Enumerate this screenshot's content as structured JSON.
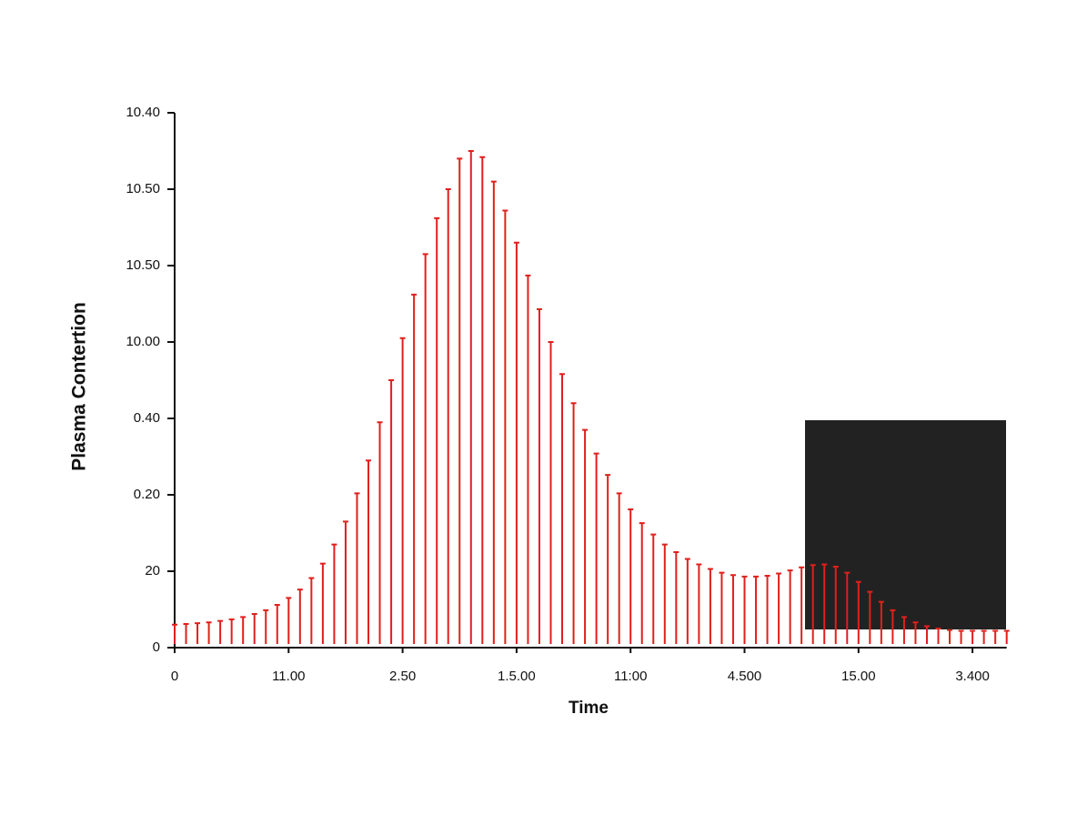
{
  "chart_data": {
    "type": "stem",
    "ylabel": "Plasma Contertion",
    "xlabel": "Time",
    "color": "#e0201c",
    "x": [
      0,
      0.1,
      0.2,
      0.3,
      0.4,
      0.5,
      0.6,
      0.7,
      0.8,
      0.9,
      1.0,
      1.1,
      1.2,
      1.3,
      1.4,
      1.5,
      1.6,
      1.7,
      1.8,
      1.9,
      2.0,
      2.1,
      2.2,
      2.3,
      2.4,
      2.5,
      2.6,
      2.7,
      2.8,
      2.9,
      3.0,
      3.1,
      3.2,
      3.3,
      3.4,
      3.5,
      3.6,
      3.7,
      3.8,
      3.9,
      4.0,
      4.1,
      4.2,
      4.3,
      4.4,
      4.5,
      4.6,
      4.7,
      4.8,
      4.9,
      5.0,
      5.1,
      5.2,
      5.3,
      5.4,
      5.5,
      5.6,
      5.7,
      5.8,
      5.9,
      6.0,
      6.1,
      6.2,
      6.3,
      6.4,
      6.5,
      6.6,
      6.7,
      6.8,
      6.9,
      7.0,
      7.1,
      7.2,
      7.3
    ],
    "values": [
      0.3,
      0.31,
      0.32,
      0.33,
      0.35,
      0.37,
      0.4,
      0.44,
      0.49,
      0.56,
      0.65,
      0.76,
      0.91,
      1.1,
      1.35,
      1.65,
      2.02,
      2.45,
      2.95,
      3.5,
      4.05,
      4.62,
      5.15,
      5.62,
      6.0,
      6.4,
      6.5,
      6.42,
      6.1,
      5.72,
      5.3,
      4.87,
      4.43,
      4.0,
      3.58,
      3.2,
      2.85,
      2.54,
      2.26,
      2.02,
      1.81,
      1.63,
      1.48,
      1.35,
      1.25,
      1.16,
      1.09,
      1.03,
      0.98,
      0.95,
      0.93,
      0.93,
      0.94,
      0.97,
      1.01,
      1.05,
      1.08,
      1.09,
      1.06,
      0.98,
      0.86,
      0.73,
      0.6,
      0.49,
      0.4,
      0.33,
      0.28,
      0.25,
      0.23,
      0.22,
      0.22,
      0.22,
      0.22,
      0.22
    ],
    "xlim": [
      0,
      7.3
    ],
    "xticks": [
      0,
      {
        "value": 1,
        "label": "11.00"
      },
      {
        "value": 2,
        "label": "2.50"
      },
      {
        "value": 3,
        "label": "1.5.00"
      },
      {
        "value": 4,
        "label": "11:00"
      },
      {
        "value": 5,
        "label": "4.500"
      },
      {
        "value": 6,
        "label": "15.00"
      },
      {
        "value": 7,
        "label": "3.400"
      }
    ],
    "ylim": [
      0,
      7
    ],
    "yticks": [
      0,
      {
        "value": 1,
        "label": "20"
      },
      {
        "value": 2,
        "label": "0.20"
      },
      {
        "value": 3,
        "label": "0.40"
      },
      {
        "value": 4,
        "label": "10.00"
      },
      {
        "value": 5,
        "label": "10.50"
      },
      {
        "value": 6,
        "label": "10.50"
      },
      {
        "value": 7,
        "label": "10.40"
      }
    ]
  }
}
